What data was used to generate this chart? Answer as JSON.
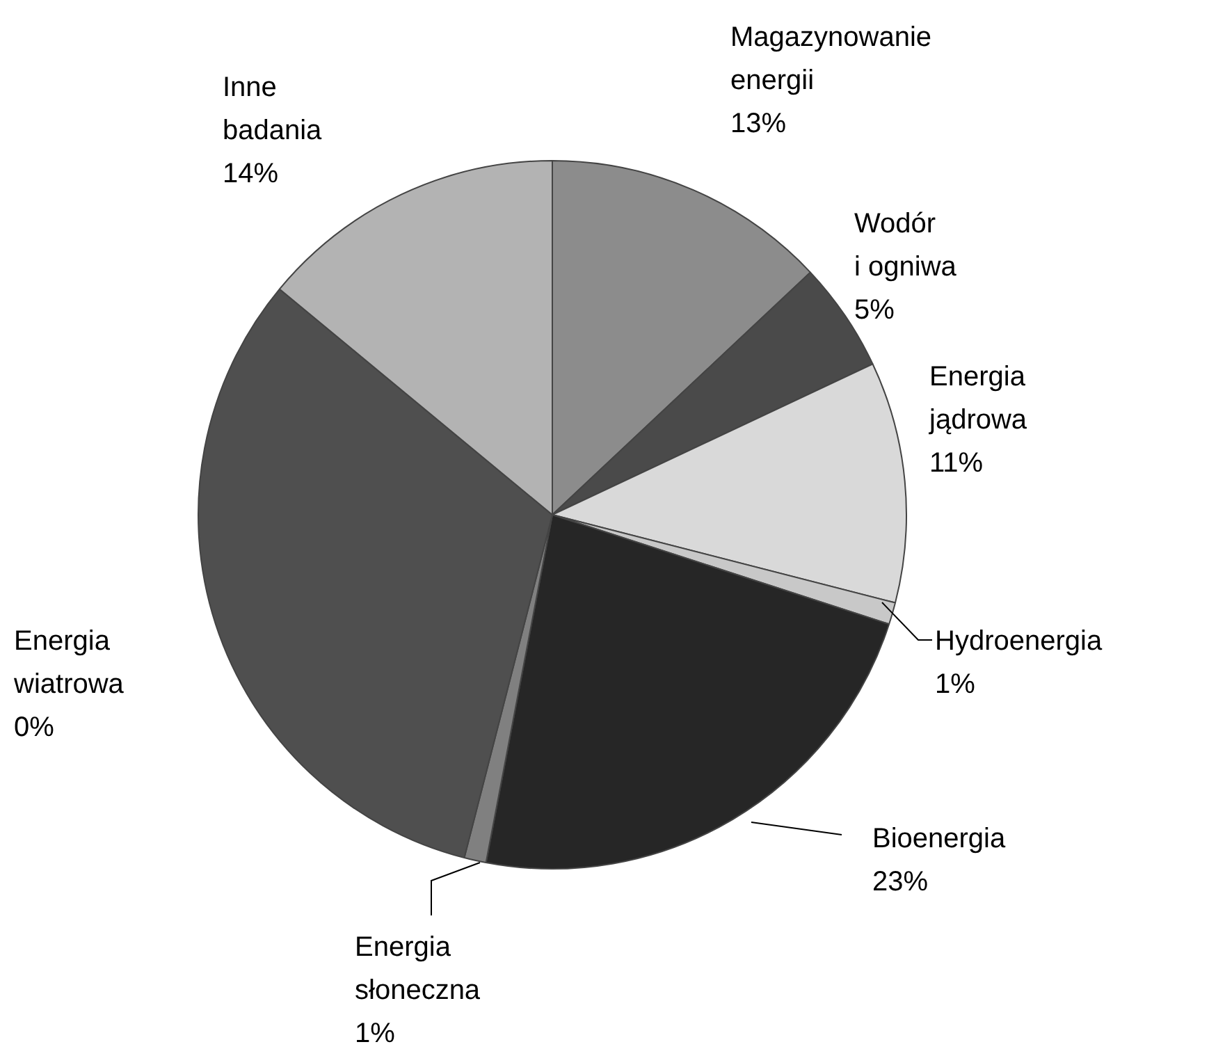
{
  "chart_data": {
    "type": "pie",
    "categories": [
      "Magazynowanie energii",
      "Wodór i ogniwa",
      "Energia jądrowa",
      "Hydroenergia",
      "Bioenergia",
      "Energia słoneczna",
      null,
      "Energia wiatrowa",
      "Inne badania"
    ],
    "values": [
      13,
      5,
      11,
      1,
      23,
      1,
      32,
      0,
      14
    ],
    "value_labels": [
      "13%",
      "5%",
      "11%",
      "1%",
      "23%",
      "1%",
      null,
      "0%",
      "14%"
    ],
    "colors": [
      "#8c8c8c",
      "#4a4a4a",
      "#d9d9d9",
      "#c8c8c8",
      "#262626",
      "#808080",
      "#4f4f4f",
      "#4f4f4f",
      "#b3b3b3"
    ]
  }
}
